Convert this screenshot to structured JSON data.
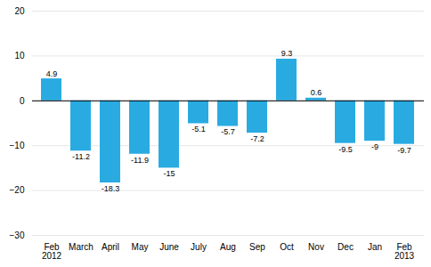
{
  "chart_data": {
    "type": "bar",
    "categories": [
      "Feb\n2012",
      "March",
      "April",
      "May",
      "June",
      "July",
      "Aug",
      "Sep",
      "Oct",
      "Nov",
      "Dec",
      "Jan",
      "Feb\n2013"
    ],
    "values": [
      4.9,
      -11.2,
      -18.3,
      -11.9,
      -15.0,
      -5.1,
      -5.7,
      -7.2,
      9.3,
      0.6,
      -9.5,
      -9.0,
      -9.7
    ],
    "color": "#29abe2",
    "ylim": [
      -30,
      20
    ],
    "yticks": [
      -30,
      -20,
      -10,
      0,
      10,
      20
    ],
    "grid": true,
    "data_labels": true
  }
}
